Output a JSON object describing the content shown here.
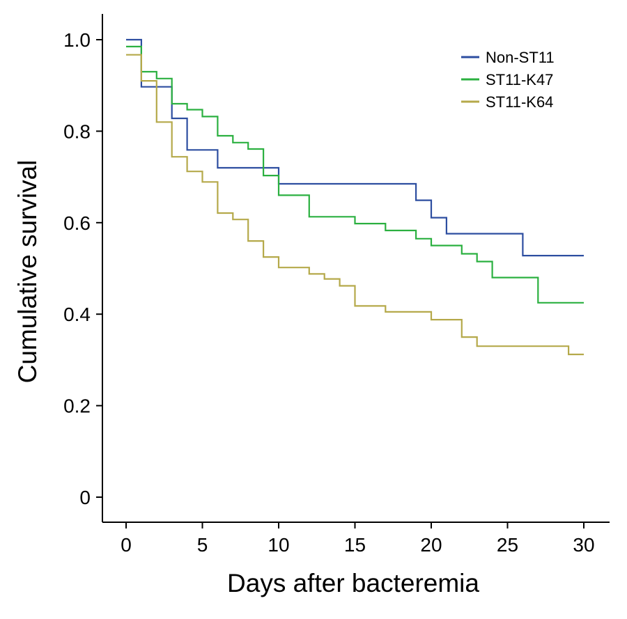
{
  "chart_data": {
    "type": "line",
    "step": true,
    "xlabel": "Days after bacteremia",
    "ylabel": "Cumulative survival",
    "xlim": [
      0,
      30
    ],
    "ylim": [
      0,
      1.0
    ],
    "x_ticks": [
      0,
      5,
      10,
      15,
      20,
      25,
      30
    ],
    "x_tick_labels": [
      "0",
      "5",
      "10",
      "15",
      "20",
      "25",
      "30"
    ],
    "y_ticks": [
      0,
      0.2,
      0.4,
      0.6,
      0.8,
      1.0
    ],
    "y_tick_labels": [
      "0",
      "0.2",
      "0.4",
      "0.6",
      "0.8",
      "1.0"
    ],
    "grid": false,
    "legend_position": "top-right",
    "series": [
      {
        "name": "Non-ST11",
        "color": "#2d4ea0",
        "x": [
          0,
          1,
          3,
          4,
          6,
          10,
          19,
          20,
          21,
          26,
          30
        ],
        "y": [
          1.0,
          0.897,
          0.828,
          0.759,
          0.72,
          0.685,
          0.649,
          0.611,
          0.576,
          0.528,
          0.528
        ]
      },
      {
        "name": "ST11-K47",
        "color": "#2bb040",
        "x": [
          0,
          1,
          2,
          3,
          4,
          5,
          6,
          7,
          8,
          9,
          10,
          12,
          15,
          17,
          19,
          20,
          22,
          23,
          24,
          27,
          30
        ],
        "y": [
          0.985,
          0.93,
          0.915,
          0.86,
          0.847,
          0.832,
          0.79,
          0.775,
          0.761,
          0.703,
          0.66,
          0.613,
          0.598,
          0.583,
          0.565,
          0.55,
          0.532,
          0.515,
          0.48,
          0.425,
          0.425
        ]
      },
      {
        "name": "ST11-K64",
        "color": "#b5a94a",
        "x": [
          0,
          1,
          2,
          3,
          4,
          5,
          6,
          7,
          8,
          9,
          10,
          12,
          13,
          14,
          15,
          17,
          20,
          22,
          23,
          29,
          30
        ],
        "y": [
          0.967,
          0.91,
          0.82,
          0.744,
          0.712,
          0.689,
          0.621,
          0.607,
          0.56,
          0.525,
          0.502,
          0.488,
          0.477,
          0.462,
          0.418,
          0.405,
          0.388,
          0.35,
          0.33,
          0.312,
          0.312
        ]
      }
    ]
  }
}
